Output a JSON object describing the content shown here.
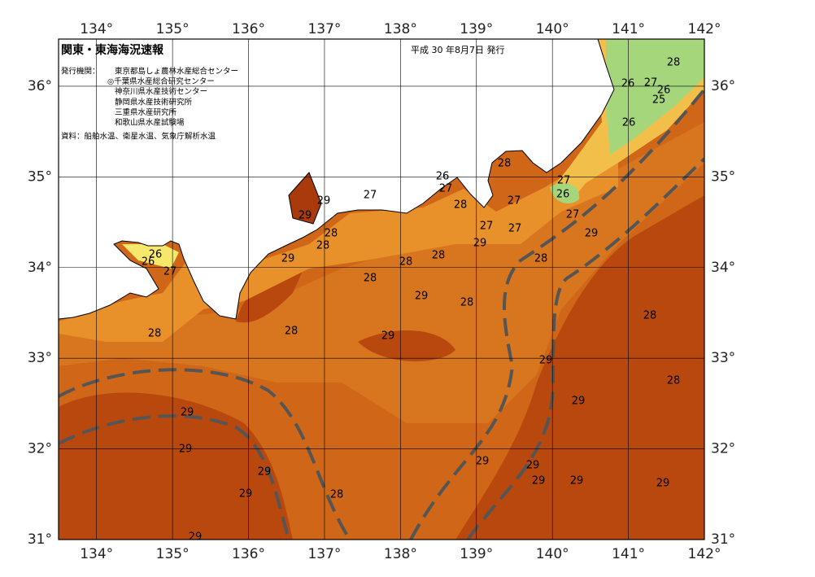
{
  "map": {
    "title": "関東・東海海況速報",
    "issue_date": "平成 30 年8月7日 発行",
    "issuer_label": "発行機関：",
    "issuers": [
      "東京都島しょ農林水産総合センター",
      "◎千葉県水産総合研究センター",
      "神奈川県水産技術センター",
      "静岡県水産技術研究所",
      "三重県水産研究所",
      "和歌山県水産試験場"
    ],
    "sources": "資料：船舶水温、衛星水温、気象庁解析水温",
    "xlim": [
      133.5,
      142
    ],
    "ylim": [
      31,
      36.52
    ],
    "xticks": [
      {
        "value": 134,
        "label": "134°"
      },
      {
        "value": 135,
        "label": "135°"
      },
      {
        "value": 136,
        "label": "136°"
      },
      {
        "value": 137,
        "label": "137°"
      },
      {
        "value": 138,
        "label": "138°"
      },
      {
        "value": 139,
        "label": "139°"
      },
      {
        "value": 140,
        "label": "140°"
      },
      {
        "value": 141,
        "label": "141°"
      },
      {
        "value": 142,
        "label": "142°"
      }
    ],
    "yticks": [
      {
        "value": 31,
        "label": "31°"
      },
      {
        "value": 32,
        "label": "32°"
      },
      {
        "value": 33,
        "label": "33°"
      },
      {
        "value": 34,
        "label": "34°"
      },
      {
        "value": 35,
        "label": "35°"
      },
      {
        "value": 36,
        "label": "36°"
      }
    ],
    "contour_labels": [
      28,
      26,
      27,
      26,
      25,
      26,
      28,
      26,
      27,
      27,
      26,
      27,
      29,
      29,
      28,
      27,
      27,
      27,
      27,
      28,
      28,
      29,
      29,
      28,
      28,
      29,
      28,
      26,
      26,
      27,
      28,
      29,
      28,
      28,
      28,
      28,
      29,
      29,
      28,
      29,
      29,
      29,
      29,
      29,
      29,
      29,
      29,
      29,
      28,
      29,
      29
    ]
  }
}
